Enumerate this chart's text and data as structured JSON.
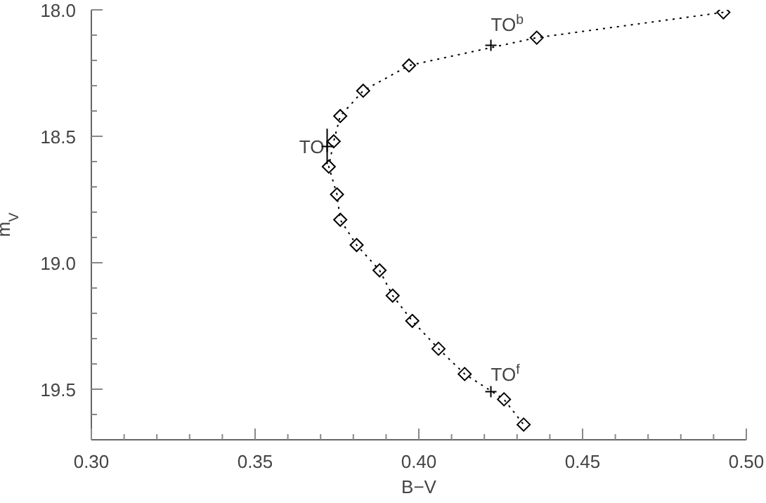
{
  "chart_data": {
    "type": "scatter",
    "xlabel": "B−V",
    "ylabel": "m$_{V}$",
    "xlim": [
      0.3,
      0.5
    ],
    "ylim": [
      19.7,
      18.0
    ],
    "xticks": [
      {
        "value": 0.3,
        "label": "0.30"
      },
      {
        "value": 0.31,
        "label": null
      },
      {
        "value": 0.32,
        "label": null
      },
      {
        "value": 0.33,
        "label": null
      },
      {
        "value": 0.34,
        "label": null
      },
      {
        "value": 0.35,
        "label": "0.35"
      },
      {
        "value": 0.36,
        "label": null
      },
      {
        "value": 0.37,
        "label": null
      },
      {
        "value": 0.38,
        "label": null
      },
      {
        "value": 0.39,
        "label": null
      },
      {
        "value": 0.4,
        "label": "0.40"
      },
      {
        "value": 0.41,
        "label": null
      },
      {
        "value": 0.42,
        "label": null
      },
      {
        "value": 0.43,
        "label": null
      },
      {
        "value": 0.44,
        "label": null
      },
      {
        "value": 0.45,
        "label": "0.45"
      },
      {
        "value": 0.46,
        "label": null
      },
      {
        "value": 0.47,
        "label": null
      },
      {
        "value": 0.48,
        "label": null
      },
      {
        "value": 0.49,
        "label": null
      },
      {
        "value": 0.5,
        "label": "0.50"
      }
    ],
    "yticks": [
      {
        "value": 18.0,
        "label": "18.0"
      },
      {
        "value": 18.1,
        "label": null
      },
      {
        "value": 18.2,
        "label": null
      },
      {
        "value": 18.3,
        "label": null
      },
      {
        "value": 18.4,
        "label": null
      },
      {
        "value": 18.5,
        "label": "18.5"
      },
      {
        "value": 18.6,
        "label": null
      },
      {
        "value": 18.7,
        "label": null
      },
      {
        "value": 18.8,
        "label": null
      },
      {
        "value": 18.9,
        "label": null
      },
      {
        "value": 19.0,
        "label": "19.0"
      },
      {
        "value": 19.1,
        "label": null
      },
      {
        "value": 19.2,
        "label": null
      },
      {
        "value": 19.3,
        "label": null
      },
      {
        "value": 19.4,
        "label": null
      },
      {
        "value": 19.5,
        "label": "19.5"
      },
      {
        "value": 19.6,
        "label": null
      }
    ],
    "series": [
      {
        "type": "line",
        "color": "#000000",
        "marker": "diamond",
        "line_style": "dotted",
        "x": [
          0.493,
          0.436,
          0.397,
          0.383,
          0.376,
          0.374,
          0.3725,
          0.375,
          0.376,
          0.381,
          0.388,
          0.392,
          0.398,
          0.406,
          0.414,
          0.426,
          0.432
        ],
        "values": [
          18.01,
          18.11,
          18.22,
          18.32,
          18.42,
          18.52,
          18.62,
          18.73,
          18.83,
          18.93,
          19.03,
          19.13,
          19.23,
          19.34,
          19.44,
          19.54,
          19.64
        ]
      },
      {
        "color": "#000000",
        "marker": "cross",
        "x": [
          0.422,
          0.372,
          0.422
        ],
        "values": [
          18.14,
          18.54,
          19.51
        ],
        "errors": [
          null,
          0.07,
          null
        ]
      }
    ],
    "annotations": [
      "TO$^{b}$",
      "TO",
      "TO$^{f}$"
    ]
  }
}
